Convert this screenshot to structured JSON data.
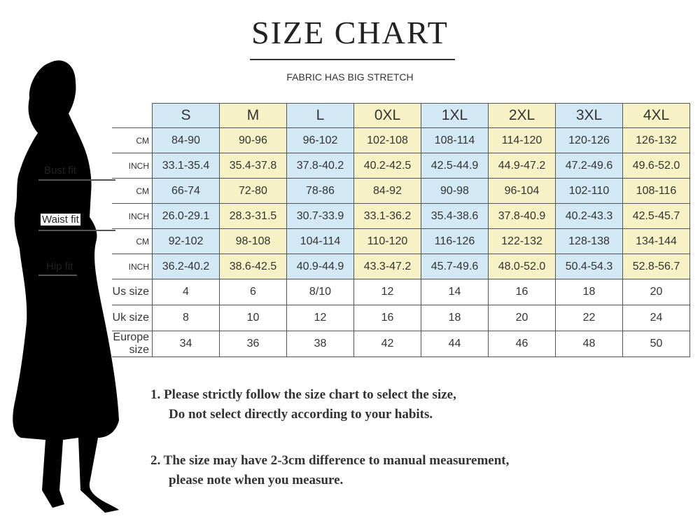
{
  "title": "SIZE CHART",
  "subtitle": "FABRIC HAS BIG STRETCH",
  "colors": {
    "blue": "#d3e8f5",
    "yellow": "#f7f1c6",
    "border": "#555555"
  },
  "fit_labels": [
    "Bust fit",
    "Waist fit",
    "Hip fit"
  ],
  "sizes": [
    "S",
    "M",
    "L",
    "0XL",
    "1XL",
    "2XL",
    "3XL",
    "4XL"
  ],
  "rows": [
    {
      "label": "CM",
      "values": [
        "84-90",
        "90-96",
        "96-102",
        "102-108",
        "108-114",
        "114-120",
        "120-126",
        "126-132"
      ]
    },
    {
      "label": "INCH",
      "values": [
        "33.1-35.4",
        "35.4-37.8",
        "37.8-40.2",
        "40.2-42.5",
        "42.5-44.9",
        "44.9-47.2",
        "47.2-49.6",
        "49.6-52.0"
      ]
    },
    {
      "label": "CM",
      "values": [
        "66-74",
        "72-80",
        "78-86",
        "84-92",
        "90-98",
        "96-104",
        "102-110",
        "108-116"
      ]
    },
    {
      "label": "INCH",
      "values": [
        "26.0-29.1",
        "28.3-31.5",
        "30.7-33.9",
        "33.1-36.2",
        "35.4-38.6",
        "37.8-40.9",
        "40.2-43.3",
        "42.5-45.7"
      ]
    },
    {
      "label": "CM",
      "values": [
        "92-102",
        "98-108",
        "104-114",
        "110-120",
        "116-126",
        "122-132",
        "128-138",
        "134-144"
      ]
    },
    {
      "label": "INCH",
      "values": [
        "36.2-40.2",
        "38.6-42.5",
        "40.9-44.9",
        "43.3-47.2",
        "45.7-49.6",
        "48.0-52.0",
        "50.4-54.3",
        "52.8-56.7"
      ]
    },
    {
      "label": "Us size",
      "values": [
        "4",
        "6",
        "8/10",
        "12",
        "14",
        "16",
        "18",
        "20"
      ]
    },
    {
      "label": "Uk size",
      "values": [
        "8",
        "10",
        "12",
        "16",
        "18",
        "20",
        "22",
        "24"
      ]
    },
    {
      "label": "Europe size",
      "values": [
        "34",
        "36",
        "38",
        "42",
        "44",
        "46",
        "48",
        "50"
      ]
    }
  ],
  "notes": [
    {
      "line1": "1.  Please strictly follow the size chart to select the size,",
      "line2": "Do not select directly according to your habits."
    },
    {
      "line1": "2.  The size may have 2-3cm difference  to manual measurement,",
      "line2": "please note when you measure."
    }
  ]
}
